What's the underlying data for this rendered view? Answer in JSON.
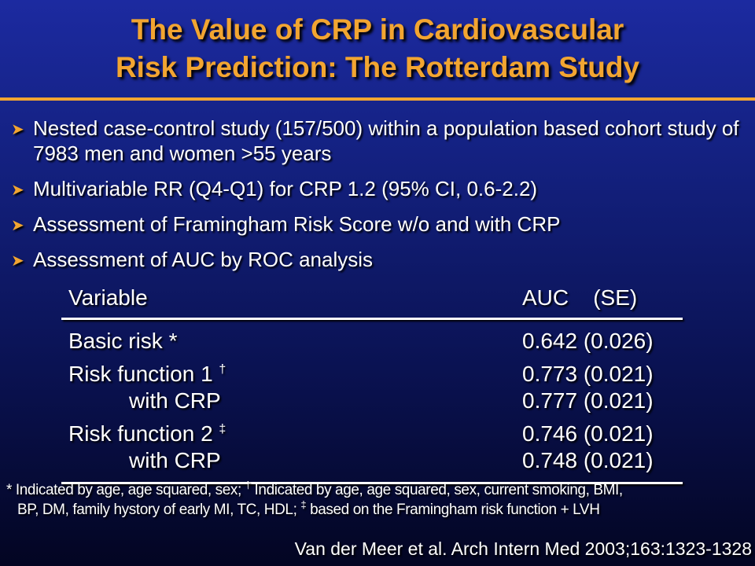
{
  "slide": {
    "title_line1": "The Value of CRP in Cardiovascular",
    "title_line2": "Risk Prediction: The Rotterdam Study",
    "colors": {
      "title": "#f2a531",
      "background_top": "#1c2aa0",
      "background_bottom": "#030522",
      "text": "#ffffff"
    }
  },
  "bullets": [
    {
      "icon": "chevron-right-icon",
      "text": "Nested case-control study (157/500) within a population based cohort study of 7983 men and women >55 years"
    },
    {
      "icon": "chevron-right-icon",
      "text": "Multivariable RR (Q4-Q1) for CRP 1.2 (95% CI, 0.6-2.2)"
    },
    {
      "icon": "chevron-right-icon",
      "text": "Assessment of Framingham Risk Score w/o and with CRP"
    },
    {
      "icon": "chevron-right-icon",
      "text": "Assessment of AUC by ROC analysis"
    }
  ],
  "table": {
    "header_variable": "Variable",
    "header_auc": "AUC    (SE)",
    "rows": [
      {
        "label": "Basic risk *",
        "mark": "",
        "value": "0.642 (0.026)"
      },
      {
        "label": "Risk function 1 ",
        "mark": "†",
        "value": "0.773 (0.021)"
      },
      {
        "label": "with CRP",
        "mark": "",
        "value": "0.777 (0.021)"
      },
      {
        "label": "Risk function 2 ",
        "mark": "‡",
        "value": "0.746 (0.021)"
      },
      {
        "label": "with CRP",
        "mark": "",
        "value": "0.748 (0.021)"
      }
    ]
  },
  "footnote": {
    "p1": "* Indicated by age, age squared, sex; ",
    "m1": "†",
    "p2": " Indicated by age, age squared, sex, current smoking, BMI,",
    "p3": "BP, DM, family hystory of early MI, TC, HDL; ",
    "m2": "‡",
    "p4": " based on the Framingham risk function + LVH"
  },
  "citation": "Van der Meer et al. Arch Intern Med 2003;163:1323-1328"
}
